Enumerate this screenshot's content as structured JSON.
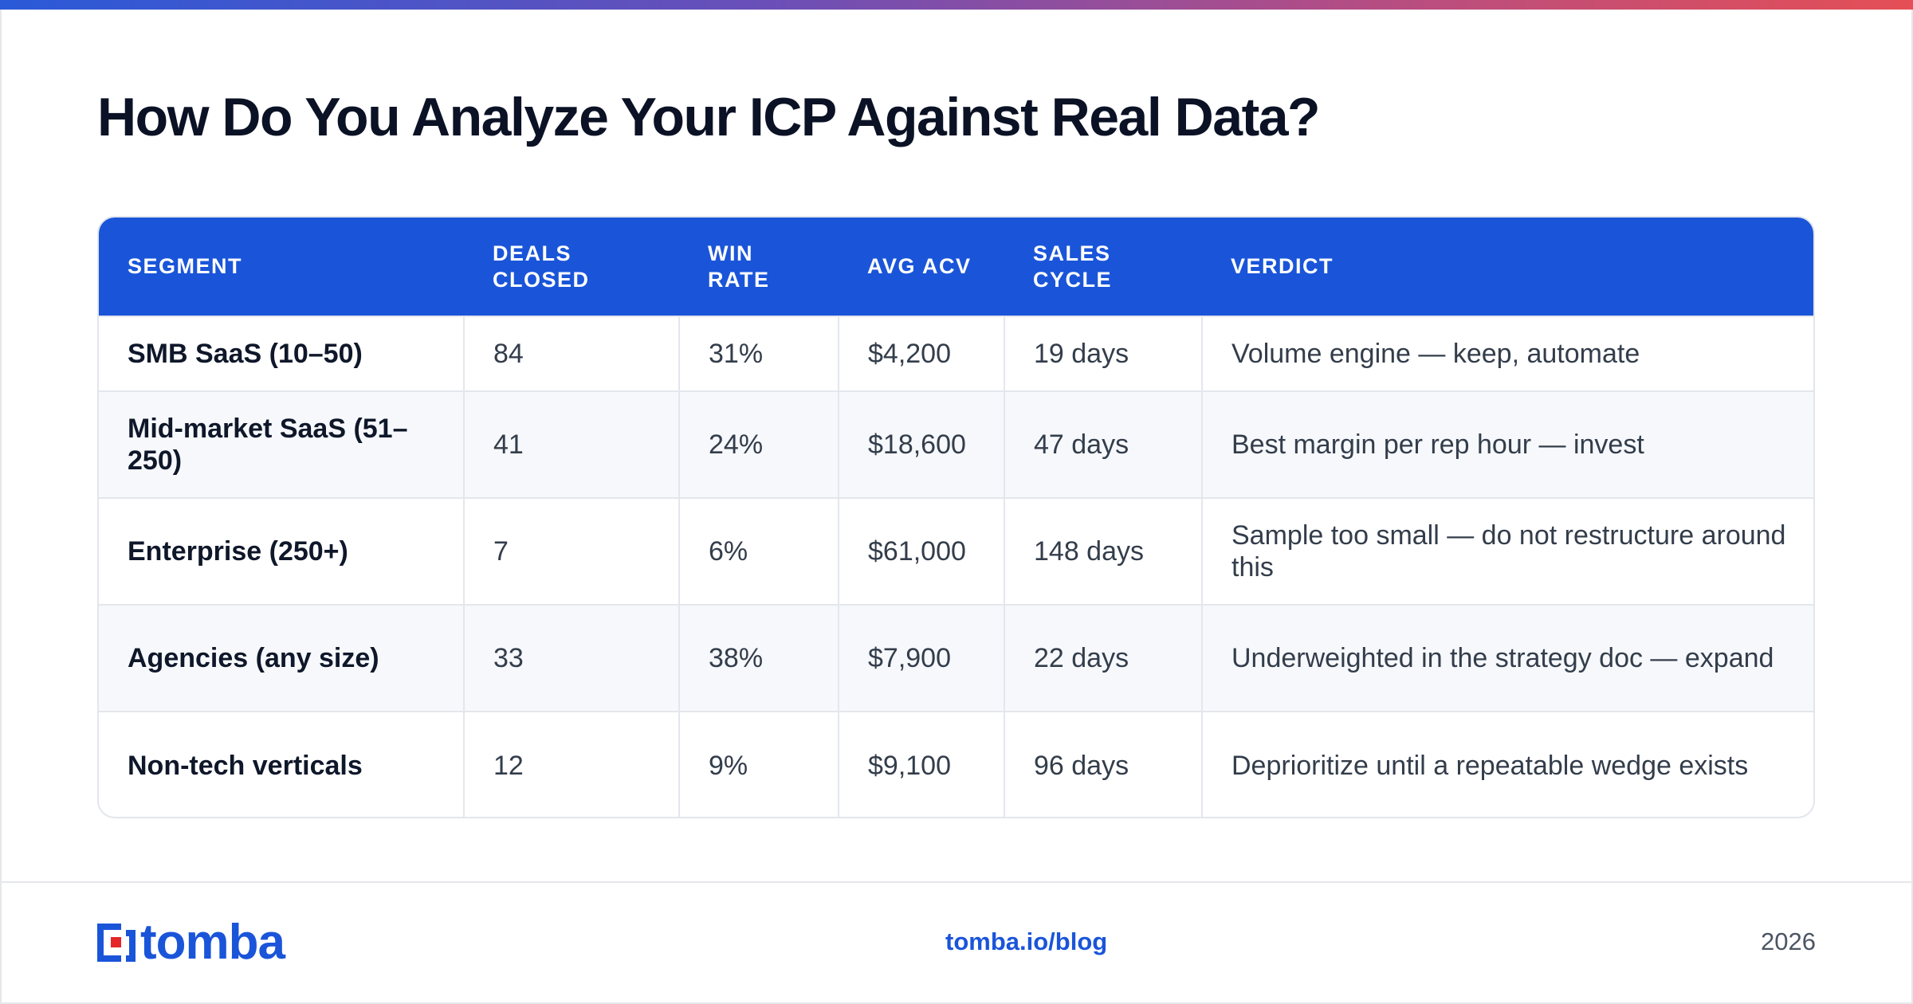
{
  "title": "How Do You Analyze Your ICP Against Real Data?",
  "table": {
    "headers": [
      "SEGMENT",
      "DEALS CLOSED",
      "WIN RATE",
      "AVG ACV",
      "SALES CYCLE",
      "VERDICT"
    ],
    "rows": [
      [
        "SMB SaaS (10–50)",
        "84",
        "31%",
        "$4,200",
        "19 days",
        "Volume engine — keep, automate"
      ],
      [
        "Mid-market SaaS (51–250)",
        "41",
        "24%",
        "$18,600",
        "47 days",
        "Best margin per rep hour — invest"
      ],
      [
        "Enterprise (250+)",
        "7",
        "6%",
        "$61,000",
        "148 days",
        "Sample too small — do not restructure around this"
      ],
      [
        "Agencies (any size)",
        "33",
        "38%",
        "$7,900",
        "22 days",
        "Underweighted in the strategy doc — expand"
      ],
      [
        "Non-tech verticals",
        "12",
        "9%",
        "$9,100",
        "96 days",
        "Deprioritize until a repeatable wedge exists"
      ]
    ]
  },
  "footer": {
    "logo_text": "tomba",
    "link": "tomba.io/blog",
    "year": "2026"
  },
  "colors": {
    "accent": "#1a55d9",
    "logo_red": "#e5252a"
  }
}
